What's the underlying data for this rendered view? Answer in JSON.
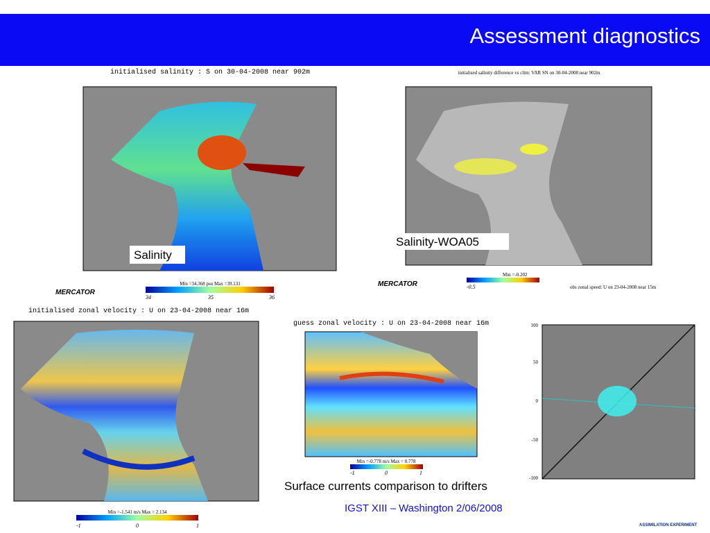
{
  "header": {
    "title": "Assessment diagnostics"
  },
  "panels": [
    {
      "title": "initialised salinity : S on 30-04-2008 near 902m",
      "caption": "Salinity",
      "colorbar": {
        "ticks": [
          "34",
          "35",
          "36"
        ],
        "range": "Min =34.368 psu Max =39.131"
      }
    },
    {
      "title": "initialised salinity difference vs clim: VAR SN on 30-04-2008 near 902m",
      "caption": "Salinity-WOA05",
      "colorbar": {
        "ticks": [
          "-0.5"
        ],
        "range": "Min =-0.202"
      },
      "note": "obs zonal speed: U on 23-04-2008 near 15m"
    },
    {
      "title": "initialised zonal velocity : U on 23-04-2008 near 16m",
      "colorbar": {
        "ticks": [
          "-1",
          "0",
          "1"
        ],
        "range": "Min =-1.541 m/s Max = 2.134"
      }
    },
    {
      "title": "guess zonal velocity : U on 23-04-2008 near 16m",
      "colorbar": {
        "ticks": [
          "-1",
          "0",
          "1"
        ],
        "range": "Min =-0.778 m/s Max = 0.778"
      }
    },
    {
      "ticks": [
        "100",
        "50",
        "0",
        "-50",
        "-100"
      ]
    }
  ],
  "caption": "Surface currents comparison to drifters",
  "logo": "MERCATOR",
  "footer": "IGST XIII – Washington  2/06/2008",
  "footer_right": "ASSIMILATION EXPERIMENT"
}
